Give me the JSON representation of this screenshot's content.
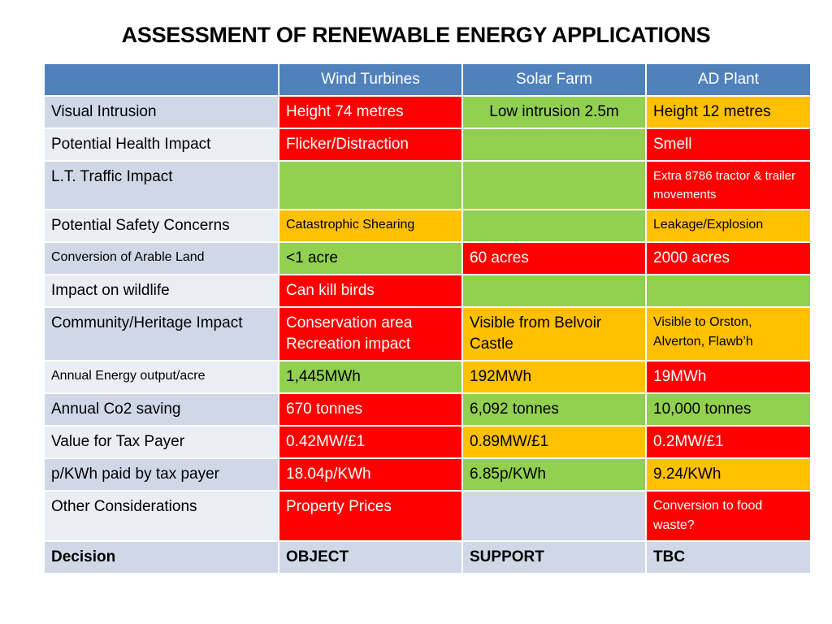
{
  "title": "ASSESSMENT OF RENEWABLE ENERGY APPLICATIONS",
  "colors": {
    "header_blue": "#4f81bd",
    "label_blue": "#d0d8e8",
    "label_light": "#e9edf4",
    "red": "#ff0000",
    "green": "#92d050",
    "amber": "#ffc000"
  },
  "table": {
    "headers": [
      "",
      "Wind  Turbines",
      "Solar Farm",
      "AD Plant"
    ],
    "rows": [
      {
        "label": "Visual Intrusion",
        "wind": "Height 74 metres",
        "solar": "Low intrusion 2.5m",
        "ad": "Height 12 metres"
      },
      {
        "label": "Potential Health Impact",
        "wind": "Flicker/Distraction",
        "solar": "",
        "ad": "Smell"
      },
      {
        "label": "L.T. Traffic Impact",
        "wind": "",
        "solar": "",
        "ad": "Extra 8786 tractor  & trailer movements"
      },
      {
        "label": "Potential Safety Concerns",
        "wind": "Catastrophic Shearing",
        "solar": "",
        "ad": "Leakage/Explosion"
      },
      {
        "label": "Conversion of Arable Land",
        "wind": "<1 acre",
        "solar": "60 acres",
        "ad": " 2000 acres"
      },
      {
        "label": "Impact on wildlife",
        "wind": "Can kill birds",
        "solar": "",
        "ad": ""
      },
      {
        "label": "Community/Heritage Impact",
        "wind": "Conservation area Recreation impact",
        "solar": "Visible from Belvoir Castle",
        "ad": "Visible to Orston, Alverton, Flawb’h"
      },
      {
        "label": "Annual Energy output/acre",
        "wind": "1,445MWh",
        "solar": "192MWh",
        "ad": "19MWh"
      },
      {
        "label": "Annual Co2 saving",
        "wind": "670 tonnes",
        "solar": "6,092 tonnes",
        "ad": "10,000 tonnes"
      },
      {
        "label": "Value for Tax Payer",
        "wind": "0.42MW/£1",
        "solar": "0.89MW/£1",
        "ad": "0.2MW/£1"
      },
      {
        "label": "p/KWh paid by tax payer",
        "wind": "18.04p/KWh",
        "solar": "6.85p/KWh",
        "ad": "9.24/KWh"
      },
      {
        "label": "Other Considerations",
        "wind": "Property Prices",
        "solar": "",
        "ad": "Conversion to food waste?"
      },
      {
        "label": "Decision",
        "wind": "OBJECT",
        "solar": "SUPPORT",
        "ad": "TBC"
      }
    ]
  }
}
